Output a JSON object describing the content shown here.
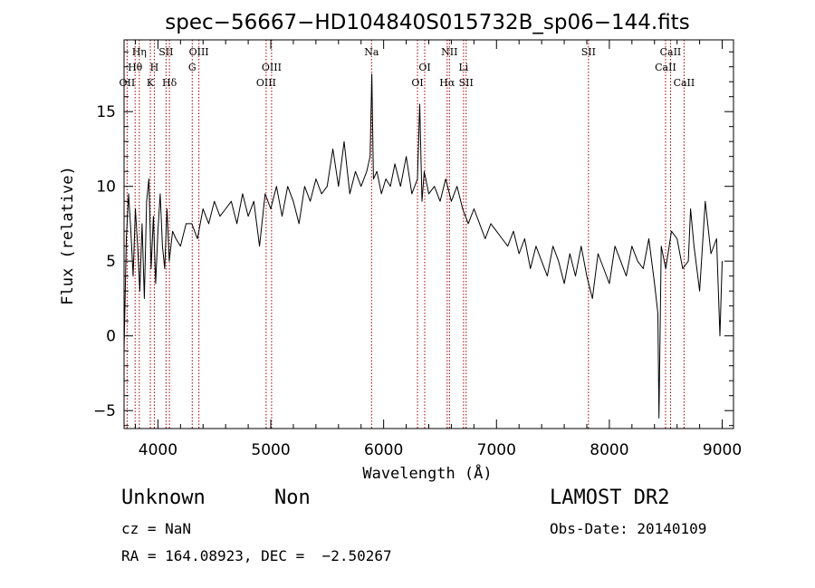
{
  "chart_data": {
    "type": "line",
    "title": "spec−56667−HD104840S015732B_sp06−144.fits",
    "xlabel": "Wavelength (Å)",
    "ylabel": "Flux (relative)",
    "xlim": [
      3700,
      9100
    ],
    "ylim": [
      -6.2,
      19.8
    ],
    "xticks": [
      4000,
      5000,
      6000,
      7000,
      8000,
      9000
    ],
    "xtick_labels": [
      "4000",
      "5000",
      "6000",
      "7000",
      "8000",
      "9000"
    ],
    "yticks": [
      -5,
      0,
      5,
      10,
      15
    ],
    "ytick_labels": [
      "−5",
      "0",
      "5",
      "10",
      "15"
    ],
    "grid": false,
    "series": [
      {
        "x": [
          3700,
          3720,
          3740,
          3760,
          3780,
          3800,
          3820,
          3840,
          3860,
          3880,
          3900,
          3920,
          3940,
          3960,
          3980,
          4000,
          4020,
          4040,
          4060,
          4080,
          4100,
          4130,
          4160,
          4200,
          4250,
          4300,
          4350,
          4400,
          4450,
          4500,
          4550,
          4600,
          4650,
          4700,
          4750,
          4800,
          4850,
          4900,
          4950,
          5000,
          5050,
          5100,
          5150,
          5200,
          5250,
          5300,
          5350,
          5400,
          5450,
          5500,
          5550,
          5600,
          5650,
          5700,
          5750,
          5800,
          5850,
          5880,
          5895,
          5910,
          5940,
          5980,
          6020,
          6060,
          6100,
          6150,
          6200,
          6250,
          6300,
          6320,
          6340,
          6360,
          6400,
          6450,
          6500,
          6550,
          6600,
          6650,
          6700,
          6750,
          6800,
          6850,
          6900,
          6950,
          7000,
          7050,
          7100,
          7150,
          7200,
          7250,
          7300,
          7350,
          7400,
          7450,
          7500,
          7550,
          7600,
          7650,
          7700,
          7750,
          7800,
          7850,
          7900,
          7950,
          8000,
          8050,
          8100,
          8150,
          8200,
          8250,
          8300,
          8350,
          8400,
          8430,
          8440,
          8460,
          8500,
          8550,
          8600,
          8650,
          8700,
          8720,
          8750,
          8800,
          8850,
          8900,
          8950,
          8980,
          9000
        ],
        "y": [
          -1.0,
          6.5,
          9.5,
          7.0,
          4.0,
          8.5,
          6.0,
          3.0,
          7.5,
          2.5,
          9.0,
          10.5,
          4.5,
          8.0,
          3.5,
          7.0,
          9.5,
          6.0,
          4.5,
          8.5,
          5.0,
          7.0,
          6.5,
          6.0,
          7.5,
          7.5,
          6.5,
          8.5,
          7.5,
          9.0,
          8.0,
          8.5,
          9.0,
          7.5,
          9.5,
          8.0,
          9.0,
          6.0,
          9.5,
          8.5,
          10.0,
          8.0,
          10.0,
          9.0,
          7.5,
          10.0,
          9.0,
          10.5,
          9.5,
          10.0,
          12.5,
          10.0,
          13.0,
          9.5,
          11.0,
          10.0,
          11.0,
          12.0,
          17.5,
          10.5,
          11.0,
          9.5,
          10.5,
          10.0,
          11.5,
          10.0,
          12.0,
          9.5,
          10.5,
          15.5,
          9.0,
          11.0,
          9.5,
          10.0,
          9.0,
          10.5,
          9.0,
          10.0,
          8.5,
          7.5,
          8.5,
          7.5,
          6.5,
          7.5,
          7.0,
          6.5,
          6.0,
          7.0,
          5.5,
          6.5,
          4.5,
          6.0,
          5.0,
          4.0,
          6.0,
          5.0,
          3.5,
          5.5,
          4.0,
          6.0,
          4.0,
          2.5,
          5.5,
          4.5,
          3.5,
          6.0,
          5.0,
          4.0,
          6.0,
          5.0,
          4.5,
          6.5,
          3.5,
          1.5,
          -5.5,
          6.0,
          4.5,
          7.0,
          6.5,
          4.5,
          5.0,
          8.5,
          6.0,
          3.0,
          9.0,
          5.5,
          6.5,
          0.0,
          5.0
        ]
      }
    ],
    "line_markers": [
      {
        "label": "Hη",
        "x": 3835,
        "row": 0
      },
      {
        "label": "Hθ",
        "x": 3798,
        "row": 1
      },
      {
        "label": "OII",
        "x": 3727,
        "row": 2
      },
      {
        "label": "SII",
        "x": 4072,
        "row": 0
      },
      {
        "label": "H",
        "x": 3968,
        "row": 1
      },
      {
        "label": "K",
        "x": 3933,
        "row": 2
      },
      {
        "label": "Hδ",
        "x": 4102,
        "row": 2
      },
      {
        "label": "OIII",
        "x": 4363,
        "row": 0
      },
      {
        "label": "G",
        "x": 4304,
        "row": 1
      },
      {
        "label": "OIII",
        "x": 5007,
        "row": 1
      },
      {
        "label": "OIII",
        "x": 4959,
        "row": 2
      },
      {
        "label": "Na",
        "x": 5893,
        "row": 0
      },
      {
        "label": "OI",
        "x": 6364,
        "row": 1
      },
      {
        "label": "OI",
        "x": 6300,
        "row": 2
      },
      {
        "label": "NII",
        "x": 6583,
        "row": 0
      },
      {
        "label": "Hα",
        "x": 6563,
        "row": 2
      },
      {
        "label": "Li",
        "x": 6708,
        "row": 1
      },
      {
        "label": "SII",
        "x": 6731,
        "row": 2
      },
      {
        "label": "SII",
        "x": 7815,
        "row": 0
      },
      {
        "label": "CaII",
        "x": 8542,
        "row": 0
      },
      {
        "label": "CaII",
        "x": 8498,
        "row": 1
      },
      {
        "label": "CaII",
        "x": 8662,
        "row": 2
      }
    ]
  },
  "info": {
    "class": "Unknown",
    "subclass": "Non",
    "survey": "LAMOST DR2",
    "redshift": "cz = NaN",
    "obs_date": "Obs-Date: 20140109",
    "coords": "RA = 164.08923, DEC =  −2.50267"
  }
}
